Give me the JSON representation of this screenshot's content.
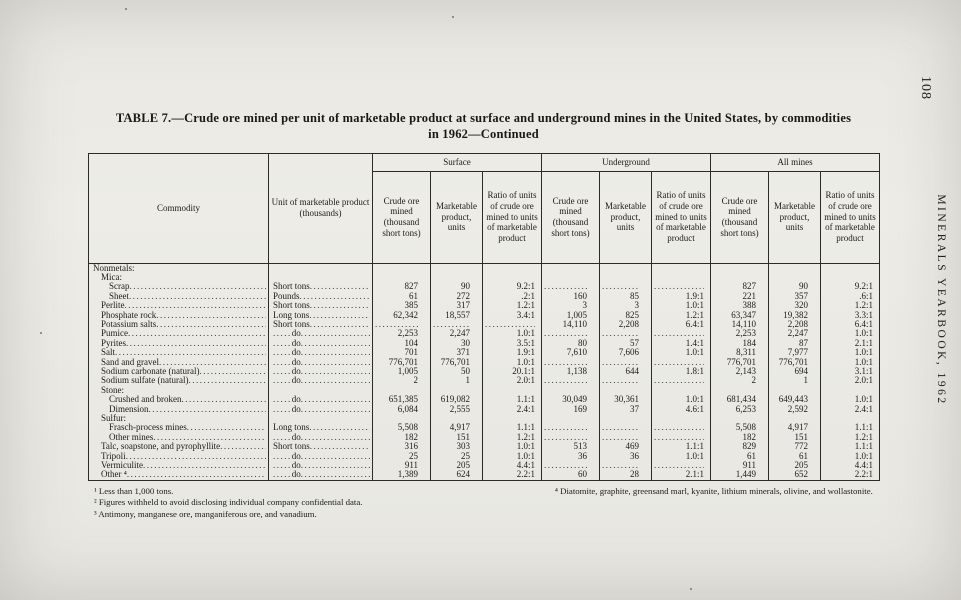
{
  "page": {
    "number": "108",
    "journal": "MINERALS YEARBOOK, 1962"
  },
  "table": {
    "title_line1": "TABLE 7.—Crude ore mined per unit of marketable product at surface and underground mines in the United States, by commodities",
    "title_line2": "in 1962—Continued",
    "headers": {
      "commodity": "Commodity",
      "unit": "Unit of marketable product (thousands)",
      "groups": [
        "Surface",
        "Underground",
        "All mines"
      ],
      "sub": [
        "Crude ore mined (thousand short tons)",
        "Market­able product, units",
        "Ratio of units of crude ore mined to units of market­able product"
      ]
    },
    "rows": [
      {
        "label": "Nonmetals:",
        "indent": 0,
        "section": true
      },
      {
        "label": "Mica:",
        "indent": 1,
        "section": true
      },
      {
        "label": "Scrap",
        "indent": 2,
        "unit": "Short tons",
        "values": [
          "827",
          "90",
          "9.2:1",
          "",
          "",
          "",
          "827",
          "90",
          "9.2:1"
        ]
      },
      {
        "label": "Sheet",
        "indent": 2,
        "unit": "Pounds",
        "values": [
          "61",
          "272",
          ".2:1",
          "160",
          "85",
          "1.9:1",
          "221",
          "357",
          ".6:1"
        ]
      },
      {
        "label": "Perlite",
        "indent": 1,
        "unit": "Short tons",
        "values": [
          "385",
          "317",
          "1.2:1",
          "3",
          "3",
          "1.0:1",
          "388",
          "320",
          "1.2:1"
        ]
      },
      {
        "label": "Phosphate rock",
        "indent": 1,
        "unit": "Long tons",
        "values": [
          "62,342",
          "18,557",
          "3.4:1",
          "1,005",
          "825",
          "1.2:1",
          "63,347",
          "19,382",
          "3.3:1"
        ]
      },
      {
        "label": "Potassium salts",
        "indent": 1,
        "unit": "Short tons",
        "values": [
          "",
          "",
          "",
          "14,110",
          "2,208",
          "6.4:1",
          "14,110",
          "2,208",
          "6.4:1"
        ]
      },
      {
        "label": "Pumice",
        "indent": 1,
        "unit": "do",
        "values": [
          "2,253",
          "2,247",
          "1.0:1",
          "",
          "",
          "",
          "2,253",
          "2,247",
          "1.0:1"
        ]
      },
      {
        "label": "Pyrites",
        "indent": 1,
        "unit": "do",
        "values": [
          "104",
          "30",
          "3.5:1",
          "80",
          "57",
          "1.4:1",
          "184",
          "87",
          "2.1:1"
        ]
      },
      {
        "label": "Salt",
        "indent": 1,
        "unit": "do",
        "values": [
          "701",
          "371",
          "1.9:1",
          "7,610",
          "7,606",
          "1.0:1",
          "8,311",
          "7,977",
          "1.0:1"
        ]
      },
      {
        "label": "Sand and gravel",
        "indent": 1,
        "unit": "do",
        "values": [
          "776,701",
          "776,701",
          "1.0:1",
          "",
          "",
          "",
          "776,701",
          "776,701",
          "1.0:1"
        ]
      },
      {
        "label": "Sodium carbonate (natural)",
        "indent": 1,
        "unit": "do",
        "values": [
          "1,005",
          "50",
          "20.1:1",
          "1,138",
          "644",
          "1.8:1",
          "2,143",
          "694",
          "3.1:1"
        ]
      },
      {
        "label": "Sodium sulfate (natural)",
        "indent": 1,
        "unit": "do",
        "values": [
          "2",
          "1",
          "2.0:1",
          "",
          "",
          "",
          "2",
          "1",
          "2.0:1"
        ]
      },
      {
        "label": "Stone:",
        "indent": 1,
        "section": true
      },
      {
        "label": "Crushed and broken",
        "indent": 2,
        "unit": "do",
        "values": [
          "651,385",
          "619,082",
          "1.1:1",
          "30,049",
          "30,361",
          "1.0:1",
          "681,434",
          "649,443",
          "1.0:1"
        ]
      },
      {
        "label": "Dimension",
        "indent": 2,
        "unit": "do",
        "values": [
          "6,084",
          "2,555",
          "2.4:1",
          "169",
          "37",
          "4.6:1",
          "6,253",
          "2,592",
          "2.4:1"
        ]
      },
      {
        "label": "Sulfur:",
        "indent": 1,
        "section": true
      },
      {
        "label": "Frasch-process mines",
        "indent": 2,
        "unit": "Long tons",
        "values": [
          "5,508",
          "4,917",
          "1.1:1",
          "",
          "",
          "",
          "5,508",
          "4,917",
          "1.1:1"
        ]
      },
      {
        "label": "Other mines",
        "indent": 2,
        "unit": "do",
        "values": [
          "182",
          "151",
          "1.2:1",
          "",
          "",
          "",
          "182",
          "151",
          "1.2:1"
        ]
      },
      {
        "label": "Talc, soapstone, and pyrophyllite",
        "indent": 1,
        "unit": "Short tons",
        "values": [
          "316",
          "303",
          "1.0:1",
          "513",
          "469",
          "1.1:1",
          "829",
          "772",
          "1.1:1"
        ]
      },
      {
        "label": "Tripoli",
        "indent": 1,
        "unit": "do",
        "values": [
          "25",
          "25",
          "1.0:1",
          "36",
          "36",
          "1.0:1",
          "61",
          "61",
          "1.0:1"
        ]
      },
      {
        "label": "Vermiculite",
        "indent": 1,
        "unit": "do",
        "values": [
          "911",
          "205",
          "4.4:1",
          "",
          "",
          "",
          "911",
          "205",
          "4.4:1"
        ]
      },
      {
        "label": "Other ⁴",
        "indent": 1,
        "unit": "do",
        "values": [
          "1,389",
          "624",
          "2.2:1",
          "60",
          "28",
          "2.1:1",
          "1,449",
          "652",
          "2.2:1"
        ]
      }
    ]
  },
  "footnotes": {
    "left": [
      "¹ Less than 1,000 tons.",
      "² Figures withheld to avoid disclosing individual company confidential data.",
      "³ Antimony, manganese ore, manganiferous ore, and vanadium."
    ],
    "right": [
      "⁴ Diatomite, graphite, greensand marl, kyanite, lithium minerals, olivine, and wollastonite."
    ]
  }
}
